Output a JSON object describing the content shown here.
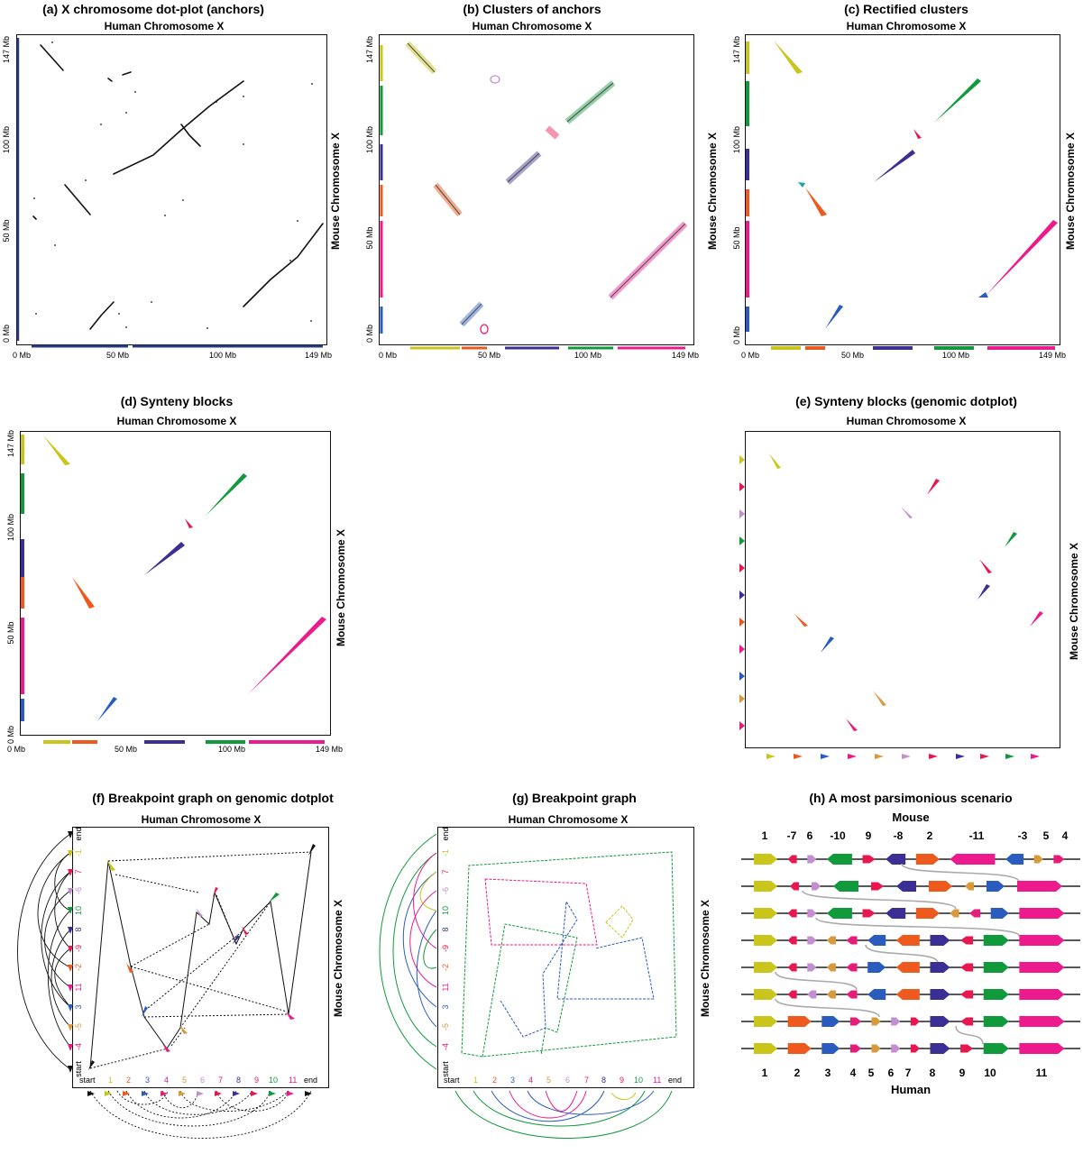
{
  "colors": {
    "c1": "#c9c51a",
    "c2": "#ee5a1e",
    "c3": "#2a5cc0",
    "c4": "#e61d78",
    "c5": "#d99a3c",
    "c6": "#c38fd0",
    "c7": "#e8174f",
    "c8": "#3b2f96",
    "c9": "#e8174f",
    "c10": "#119a3c",
    "c11": "#ec1a8c",
    "frame": "#111111"
  },
  "panels": {
    "a": {
      "title": "(a) X chromosome dot-plot (anchors)"
    },
    "b": {
      "title": "(b) Clusters of anchors"
    },
    "c": {
      "title": "(c) Rectified clusters"
    },
    "d": {
      "title": "(d) Synteny blocks"
    },
    "e": {
      "title": "(e) Synteny blocks (genomic dotplot)"
    },
    "f": {
      "title": "(f) Breakpoint graph on genomic dotplot"
    },
    "g": {
      "title": "(g) Breakpoint graph"
    },
    "h": {
      "title": "(h) A most parsimonious scenario"
    }
  },
  "axes": {
    "human": "Human Chromosome X",
    "mouse": "Mouse Chromosome X",
    "x_ticks": [
      "0 Mb",
      "50 Mb",
      "100 Mb",
      "149 Mb"
    ],
    "y_ticks": [
      "0 Mb",
      "50 Mb",
      "100 Mb",
      "147 Mb"
    ]
  },
  "graph_labels": {
    "start": "start",
    "end": "end",
    "x_order": [
      "1",
      "2",
      "3",
      "4",
      "5",
      "6",
      "7",
      "8",
      "9",
      "10",
      "11"
    ],
    "y_order": [
      "-4",
      "-5",
      "3",
      "11",
      "-2",
      "-9",
      "8",
      "10",
      "-6",
      "7",
      "-1"
    ]
  },
  "scenario": {
    "top_label": "Mouse",
    "bottom_label": "Human",
    "mouse_order": [
      "1",
      "-7",
      "6",
      "-10",
      "9",
      "-8",
      "2",
      "-11",
      "-3",
      "5",
      "4"
    ],
    "human_order": [
      "1",
      "2",
      "3",
      "4",
      "5",
      "6",
      "7",
      "8",
      "9",
      "10",
      "11"
    ]
  }
}
